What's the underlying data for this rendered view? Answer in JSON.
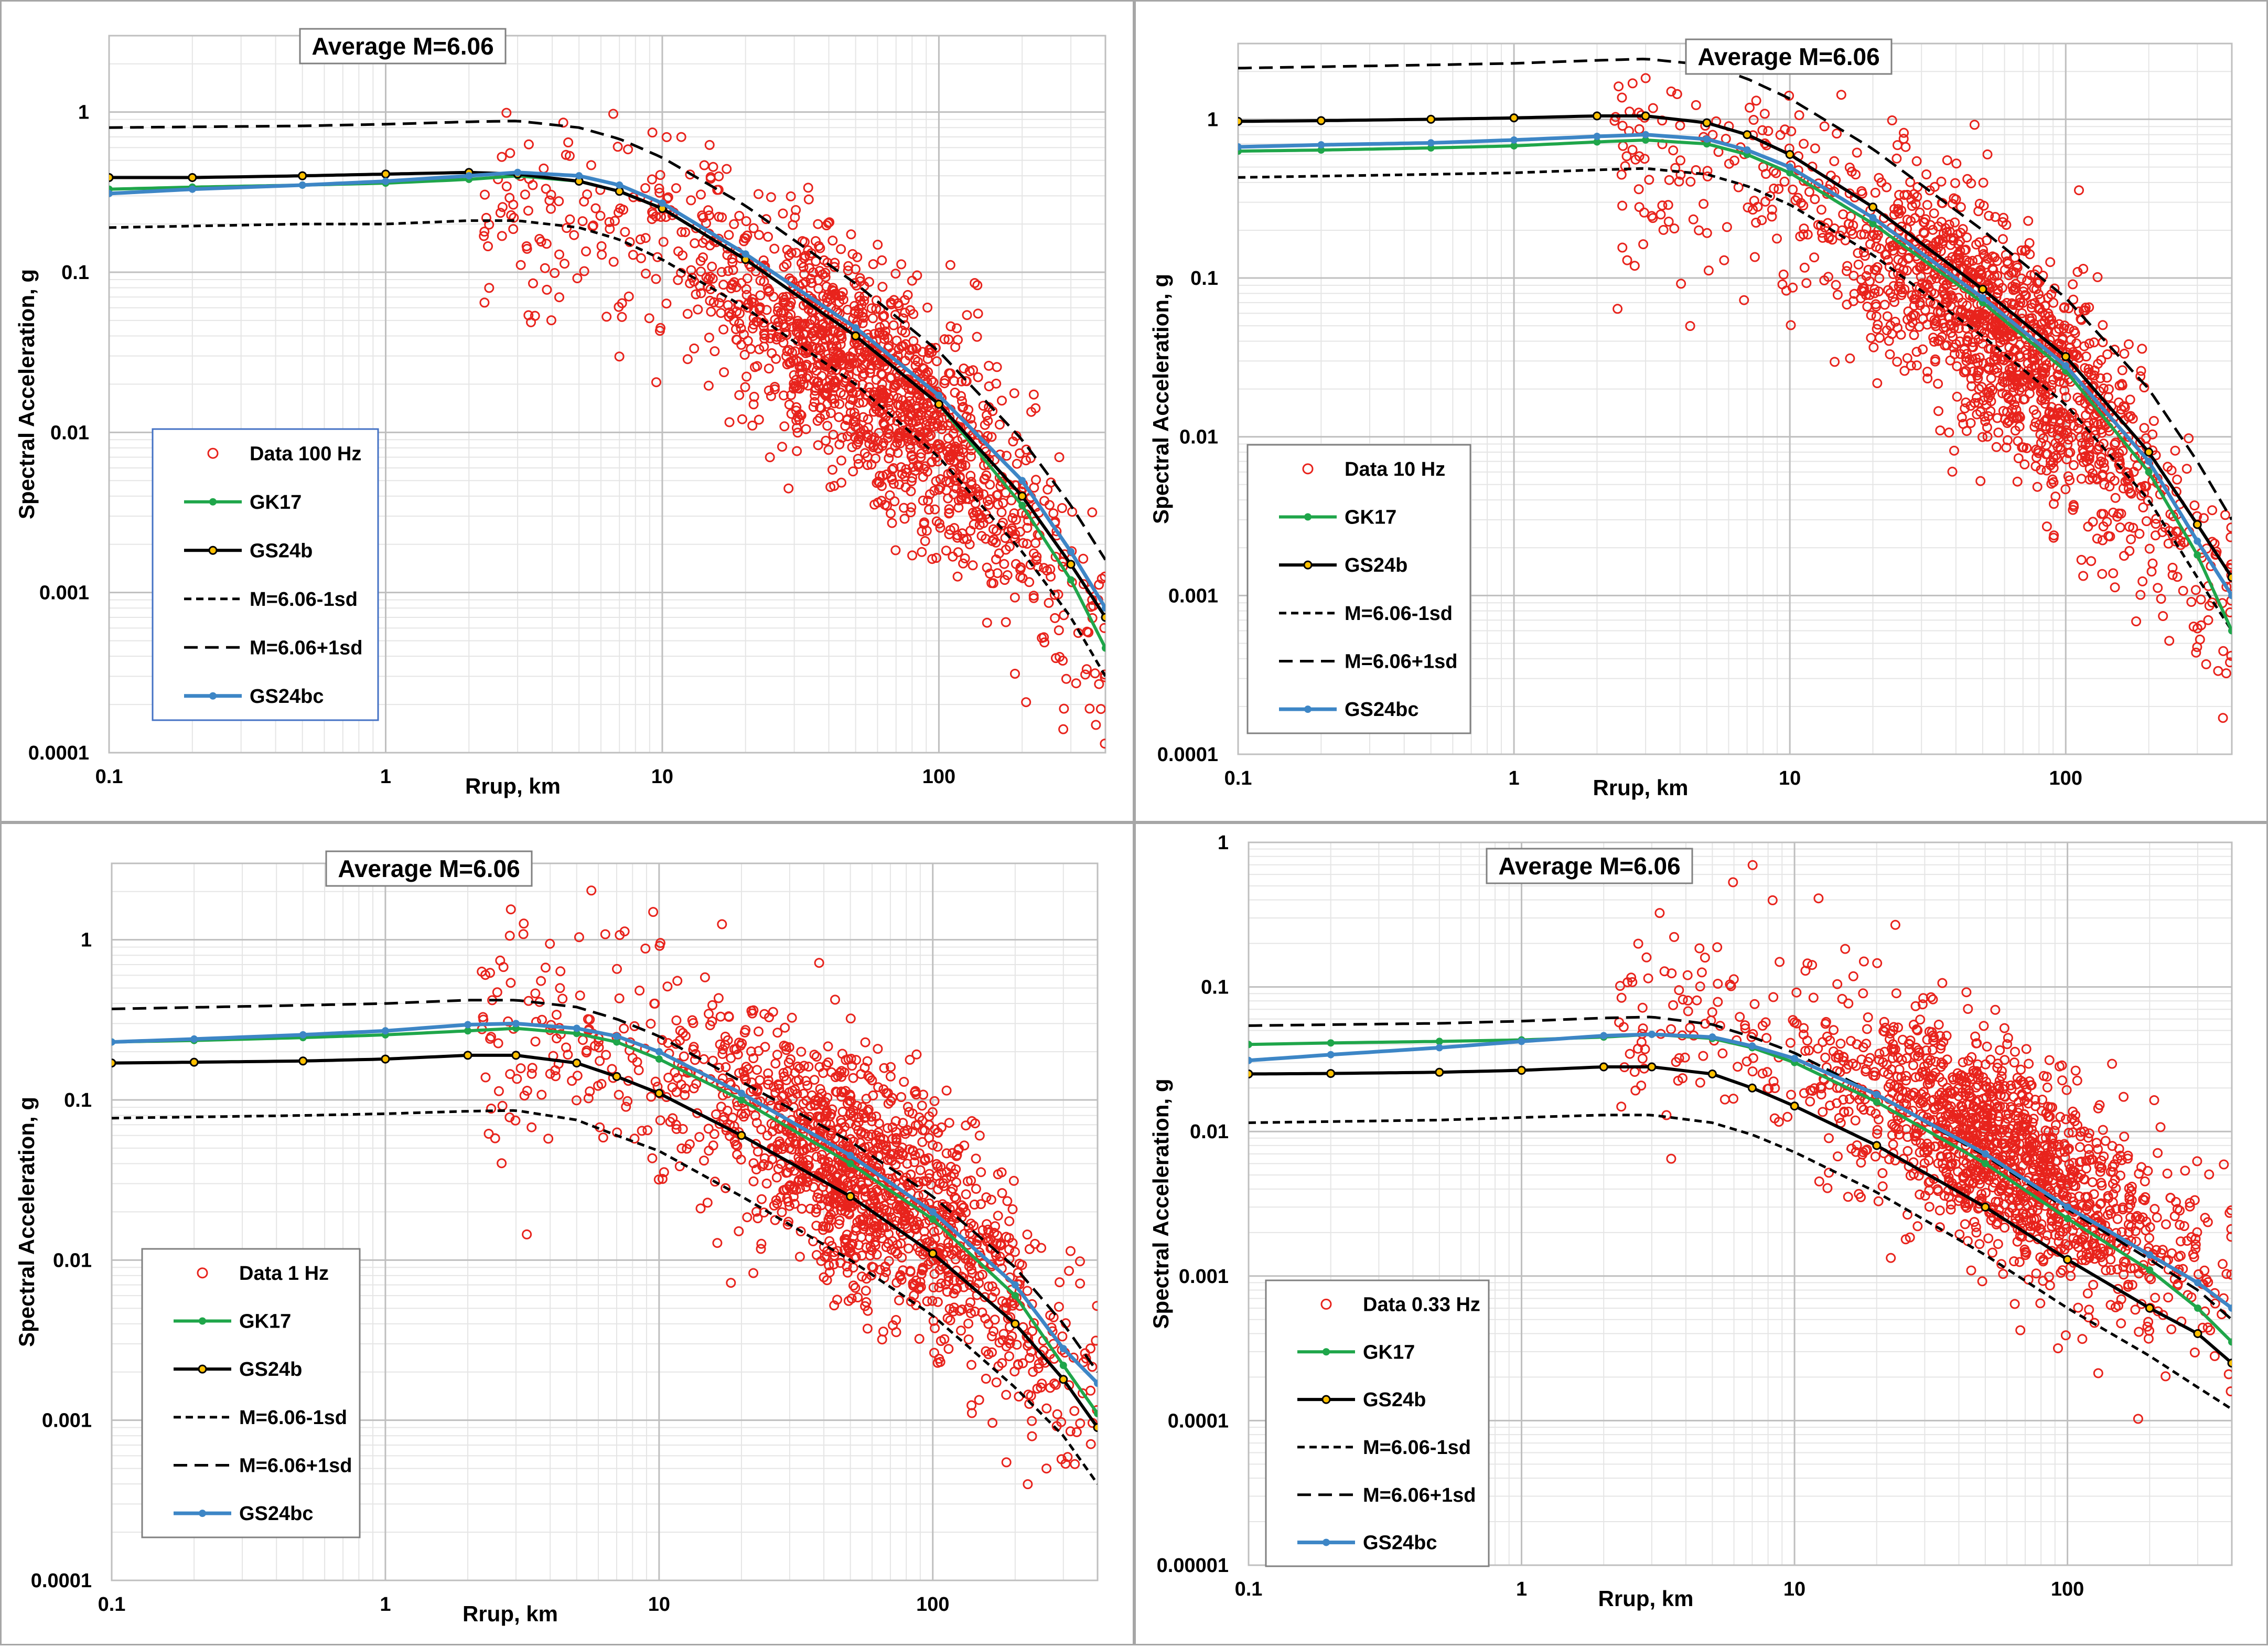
{
  "chart_data": [
    {
      "type": "scatter",
      "title": "Average M=6.06",
      "xlabel": "Rrup, km",
      "ylabel": "Spectral Acceleration, g",
      "xscale": "log",
      "yscale": "log",
      "xlim": [
        0.1,
        400
      ],
      "ylim": [
        0.0001,
        3
      ],
      "xticks": [
        "0.1",
        "1",
        "10",
        "100"
      ],
      "yticks": [
        "0.0001",
        "0.001",
        "0.01",
        "0.1",
        "1"
      ],
      "grid": true,
      "legend_position": "bottom-left",
      "legend": [
        "Data 100 Hz",
        "GK17",
        "GS24b",
        "M=6.06-1sd",
        "M=6.06+1sd",
        "GS24bc"
      ],
      "scatter": {
        "name": "Data 100 Hz",
        "center_r": 60,
        "center_sa": 0.02,
        "spread_note": "about 1500 recordings between 2 and 400 km"
      },
      "series": [
        {
          "name": "GS24b",
          "x": [
            0.1,
            0.2,
            0.5,
            1,
            2,
            3,
            5,
            7,
            10,
            20,
            50,
            100,
            200,
            300,
            400
          ],
          "y": [
            0.39,
            0.39,
            0.4,
            0.41,
            0.42,
            0.41,
            0.37,
            0.32,
            0.25,
            0.12,
            0.04,
            0.015,
            0.004,
            0.0015,
            0.0007
          ]
        },
        {
          "name": "GK17",
          "x": [
            0.1,
            0.2,
            0.5,
            1,
            2,
            3,
            5,
            7,
            10,
            20,
            50,
            100,
            200,
            300,
            400
          ],
          "y": [
            0.33,
            0.34,
            0.35,
            0.36,
            0.38,
            0.4,
            0.37,
            0.32,
            0.25,
            0.12,
            0.04,
            0.015,
            0.0035,
            0.0012,
            0.00045
          ]
        },
        {
          "name": "GS24bc",
          "x": [
            0.1,
            0.2,
            0.5,
            1,
            2,
            3,
            5,
            7,
            10,
            20,
            50,
            100,
            200,
            300,
            400
          ],
          "y": [
            0.31,
            0.33,
            0.35,
            0.37,
            0.4,
            0.42,
            0.4,
            0.35,
            0.27,
            0.13,
            0.045,
            0.017,
            0.005,
            0.0018,
            0.0008
          ]
        },
        {
          "name": "M=6.06-1sd",
          "x": [
            0.1,
            0.5,
            1,
            2,
            3,
            5,
            7,
            10,
            20,
            50,
            100,
            200,
            300,
            400
          ],
          "y": [
            0.19,
            0.2,
            0.2,
            0.21,
            0.21,
            0.19,
            0.16,
            0.12,
            0.06,
            0.02,
            0.007,
            0.0018,
            0.0007,
            0.0003
          ]
        },
        {
          "name": "M=6.06+1sd",
          "x": [
            0.1,
            0.5,
            1,
            2,
            3,
            5,
            7,
            10,
            20,
            50,
            100,
            200,
            300,
            400
          ],
          "y": [
            0.8,
            0.82,
            0.84,
            0.87,
            0.88,
            0.8,
            0.68,
            0.52,
            0.26,
            0.085,
            0.032,
            0.009,
            0.0035,
            0.0016
          ]
        }
      ]
    },
    {
      "type": "scatter",
      "title": "Average M=6.06",
      "xlabel": "Rrup, km",
      "ylabel": "Spectral Acceleration, g",
      "xscale": "log",
      "yscale": "log",
      "xlim": [
        0.1,
        400
      ],
      "ylim": [
        0.0001,
        3
      ],
      "xticks": [
        "0.1",
        "1",
        "10",
        "100"
      ],
      "yticks": [
        "0.0001",
        "0.001",
        "0.01",
        "0.1",
        "1"
      ],
      "grid": true,
      "legend_position": "bottom-left",
      "legend": [
        "Data 10 Hz",
        "GK17",
        "GS24b",
        "M=6.06-1sd",
        "M=6.06+1sd",
        "GS24bc"
      ],
      "scatter": {
        "name": "Data 10 Hz",
        "center_r": 60,
        "center_sa": 0.04,
        "spread_note": "about 1500 recordings between 2 and 400 km"
      },
      "series": [
        {
          "name": "GS24b",
          "x": [
            0.1,
            0.2,
            0.5,
            1,
            2,
            3,
            5,
            7,
            10,
            20,
            50,
            100,
            200,
            300,
            400
          ],
          "y": [
            0.97,
            0.98,
            1.0,
            1.02,
            1.05,
            1.05,
            0.95,
            0.8,
            0.6,
            0.28,
            0.085,
            0.032,
            0.008,
            0.0028,
            0.0013
          ]
        },
        {
          "name": "GK17",
          "x": [
            0.1,
            0.2,
            0.5,
            1,
            2,
            3,
            5,
            7,
            10,
            20,
            50,
            100,
            200,
            300,
            400
          ],
          "y": [
            0.63,
            0.64,
            0.66,
            0.68,
            0.72,
            0.74,
            0.7,
            0.6,
            0.46,
            0.22,
            0.07,
            0.026,
            0.006,
            0.0018,
            0.0006
          ]
        },
        {
          "name": "GS24bc",
          "x": [
            0.1,
            0.2,
            0.5,
            1,
            2,
            3,
            5,
            7,
            10,
            20,
            50,
            100,
            200,
            300,
            400
          ],
          "y": [
            0.67,
            0.69,
            0.71,
            0.74,
            0.78,
            0.8,
            0.75,
            0.64,
            0.5,
            0.24,
            0.075,
            0.028,
            0.007,
            0.0022,
            0.001
          ]
        },
        {
          "name": "M=6.06-1sd",
          "x": [
            0.1,
            0.5,
            1,
            2,
            3,
            5,
            7,
            10,
            20,
            50,
            100,
            200,
            300,
            400
          ],
          "y": [
            0.43,
            0.45,
            0.46,
            0.48,
            0.49,
            0.45,
            0.38,
            0.29,
            0.14,
            0.043,
            0.016,
            0.004,
            0.0013,
            0.0006
          ]
        },
        {
          "name": "M=6.06+1sd",
          "x": [
            0.1,
            0.5,
            1,
            2,
            3,
            5,
            7,
            10,
            20,
            50,
            100,
            200,
            300,
            400
          ],
          "y": [
            2.1,
            2.2,
            2.25,
            2.35,
            2.4,
            2.2,
            1.8,
            1.35,
            0.65,
            0.2,
            0.075,
            0.02,
            0.007,
            0.003
          ]
        }
      ]
    },
    {
      "type": "scatter",
      "title": "Average M=6.06",
      "xlabel": "Rrup, km",
      "ylabel": "Spectral Acceleration, g",
      "xscale": "log",
      "yscale": "log",
      "xlim": [
        0.1,
        400
      ],
      "ylim": [
        0.0001,
        3
      ],
      "xticks": [
        "0.1",
        "1",
        "10",
        "100"
      ],
      "yticks": [
        "0.0001",
        "0.001",
        "0.01",
        "0.1",
        "1"
      ],
      "grid": true,
      "legend_position": "bottom-left",
      "legend": [
        "Data 1 Hz",
        "GK17",
        "GS24b",
        "M=6.06-1sd",
        "M=6.06+1sd",
        "GS24bc"
      ],
      "scatter": {
        "name": "Data 1 Hz",
        "center_r": 60,
        "center_sa": 0.03,
        "spread_note": "about 1500 recordings between 2 and 400 km"
      },
      "series": [
        {
          "name": "GS24b",
          "x": [
            0.1,
            0.2,
            0.5,
            1,
            2,
            3,
            5,
            7,
            10,
            20,
            50,
            100,
            200,
            300,
            400
          ],
          "y": [
            0.17,
            0.172,
            0.175,
            0.18,
            0.19,
            0.19,
            0.17,
            0.14,
            0.11,
            0.06,
            0.025,
            0.011,
            0.004,
            0.0018,
            0.0009
          ]
        },
        {
          "name": "GK17",
          "x": [
            0.1,
            0.2,
            0.5,
            1,
            2,
            3,
            5,
            7,
            10,
            20,
            50,
            100,
            200,
            300,
            400
          ],
          "y": [
            0.23,
            0.235,
            0.245,
            0.255,
            0.27,
            0.28,
            0.26,
            0.23,
            0.18,
            0.1,
            0.04,
            0.018,
            0.006,
            0.0022,
            0.0011
          ]
        },
        {
          "name": "GS24bc",
          "x": [
            0.1,
            0.2,
            0.5,
            1,
            2,
            3,
            5,
            7,
            10,
            20,
            50,
            100,
            200,
            300,
            400
          ],
          "y": [
            0.23,
            0.24,
            0.255,
            0.27,
            0.295,
            0.3,
            0.28,
            0.25,
            0.2,
            0.11,
            0.045,
            0.02,
            0.007,
            0.0028,
            0.0017
          ]
        },
        {
          "name": "M=6.06-1sd",
          "x": [
            0.1,
            0.5,
            1,
            2,
            3,
            5,
            7,
            10,
            20,
            50,
            100,
            200,
            300,
            400
          ],
          "y": [
            0.077,
            0.08,
            0.082,
            0.085,
            0.086,
            0.075,
            0.06,
            0.048,
            0.025,
            0.01,
            0.0045,
            0.0016,
            0.0008,
            0.0004
          ]
        },
        {
          "name": "M=6.06+1sd",
          "x": [
            0.1,
            0.5,
            1,
            2,
            3,
            5,
            7,
            10,
            20,
            50,
            100,
            200,
            300,
            400
          ],
          "y": [
            0.37,
            0.39,
            0.4,
            0.42,
            0.42,
            0.38,
            0.32,
            0.25,
            0.13,
            0.055,
            0.025,
            0.009,
            0.004,
            0.002
          ]
        }
      ]
    },
    {
      "type": "scatter",
      "title": "Average M=6.06",
      "xlabel": "Rrup, km",
      "ylabel": "Spectral Acceleration, g",
      "xscale": "log",
      "yscale": "log",
      "xlim": [
        0.1,
        400
      ],
      "ylim": [
        1e-05,
        1
      ],
      "xticks": [
        "0.1",
        "1",
        "10",
        "100"
      ],
      "yticks": [
        "0.00001",
        "0.0001",
        "0.001",
        "0.01",
        "0.1",
        "1"
      ],
      "grid": true,
      "legend_position": "bottom-left",
      "legend": [
        "Data 0.33 Hz",
        "GK17",
        "GS24b",
        "M=6.06-1sd",
        "M=6.06+1sd",
        "GS24bc"
      ],
      "scatter": {
        "name": "Data 0.33 Hz",
        "center_r": 60,
        "center_sa": 0.007,
        "spread_note": "about 1500 recordings between 2 and 400 km"
      },
      "series": [
        {
          "name": "GS24b",
          "x": [
            0.1,
            0.2,
            0.5,
            1,
            2,
            3,
            5,
            7,
            10,
            20,
            50,
            100,
            200,
            300,
            400
          ],
          "y": [
            0.025,
            0.0252,
            0.0257,
            0.0265,
            0.028,
            0.028,
            0.025,
            0.02,
            0.015,
            0.008,
            0.003,
            0.0013,
            0.0006,
            0.0004,
            0.00025
          ]
        },
        {
          "name": "GK17",
          "x": [
            0.1,
            0.2,
            0.5,
            1,
            2,
            3,
            5,
            7,
            10,
            20,
            50,
            100,
            200,
            300,
            400
          ],
          "y": [
            0.04,
            0.041,
            0.042,
            0.043,
            0.045,
            0.047,
            0.044,
            0.038,
            0.03,
            0.016,
            0.006,
            0.0025,
            0.0011,
            0.0006,
            0.00035
          ]
        },
        {
          "name": "GS24bc",
          "x": [
            0.1,
            0.2,
            0.5,
            1,
            2,
            3,
            5,
            7,
            10,
            20,
            50,
            100,
            200,
            300,
            400
          ],
          "y": [
            0.031,
            0.034,
            0.038,
            0.042,
            0.046,
            0.047,
            0.045,
            0.039,
            0.032,
            0.018,
            0.007,
            0.003,
            0.0014,
            0.0009,
            0.0006
          ]
        },
        {
          "name": "M=6.06-1sd",
          "x": [
            0.1,
            0.5,
            1,
            2,
            3,
            5,
            7,
            10,
            20,
            50,
            100,
            200,
            300,
            400
          ],
          "y": [
            0.0115,
            0.012,
            0.0125,
            0.013,
            0.013,
            0.0115,
            0.0095,
            0.0072,
            0.0038,
            0.0014,
            0.0006,
            0.00028,
            0.00017,
            0.00012
          ]
        },
        {
          "name": "M=6.06+1sd",
          "x": [
            0.1,
            0.5,
            1,
            2,
            3,
            5,
            7,
            10,
            20,
            50,
            100,
            200,
            300,
            400
          ],
          "y": [
            0.054,
            0.056,
            0.058,
            0.061,
            0.062,
            0.055,
            0.045,
            0.035,
            0.018,
            0.0068,
            0.0029,
            0.0013,
            0.0008,
            0.0005
          ]
        }
      ]
    }
  ],
  "colors": {
    "data_marker": "#e8231c",
    "gk17": "#1fa64a",
    "gs24b": "#000000",
    "gs24b_marker_fill": "#ffc000",
    "gs24bc": "#3d86c6",
    "sigma_lines": "#000000",
    "grid_major": "#bfbfbf",
    "grid_minor": "#e5e5e5",
    "legend_border_panel1": "#4472c4",
    "legend_border_other": "#808080"
  }
}
